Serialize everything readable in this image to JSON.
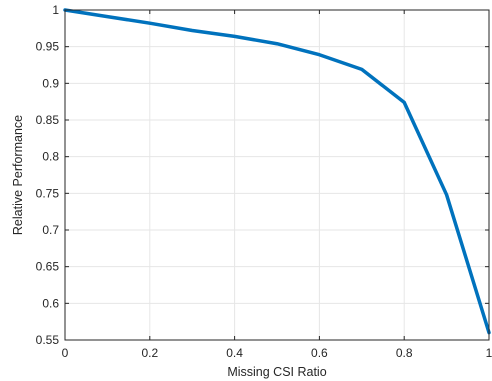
{
  "chart_data": {
    "type": "line",
    "xlabel": "Missing CSI Ratio",
    "ylabel": "Relative Performance",
    "xlim": [
      0,
      1
    ],
    "ylim": [
      0.55,
      1
    ],
    "x_ticks": [
      0,
      0.2,
      0.4,
      0.6,
      0.8,
      1
    ],
    "y_ticks": [
      0.55,
      0.6,
      0.65,
      0.7,
      0.75,
      0.8,
      0.85,
      0.9,
      0.95,
      1
    ],
    "x_tick_labels": [
      "0",
      "0.2",
      "0.4",
      "0.6",
      "0.8",
      "1"
    ],
    "y_tick_labels": [
      "0.55",
      "0.6",
      "0.65",
      "0.7",
      "0.75",
      "0.8",
      "0.85",
      "0.9",
      "0.95",
      "1"
    ],
    "grid": true,
    "series": [
      {
        "color": "#0072BD",
        "x": [
          0,
          0.1,
          0.2,
          0.3,
          0.4,
          0.5,
          0.6,
          0.7,
          0.8,
          0.9,
          1.0
        ],
        "y": [
          1.0,
          0.991,
          0.982,
          0.972,
          0.964,
          0.954,
          0.939,
          0.919,
          0.874,
          0.748,
          0.56
        ]
      }
    ]
  }
}
